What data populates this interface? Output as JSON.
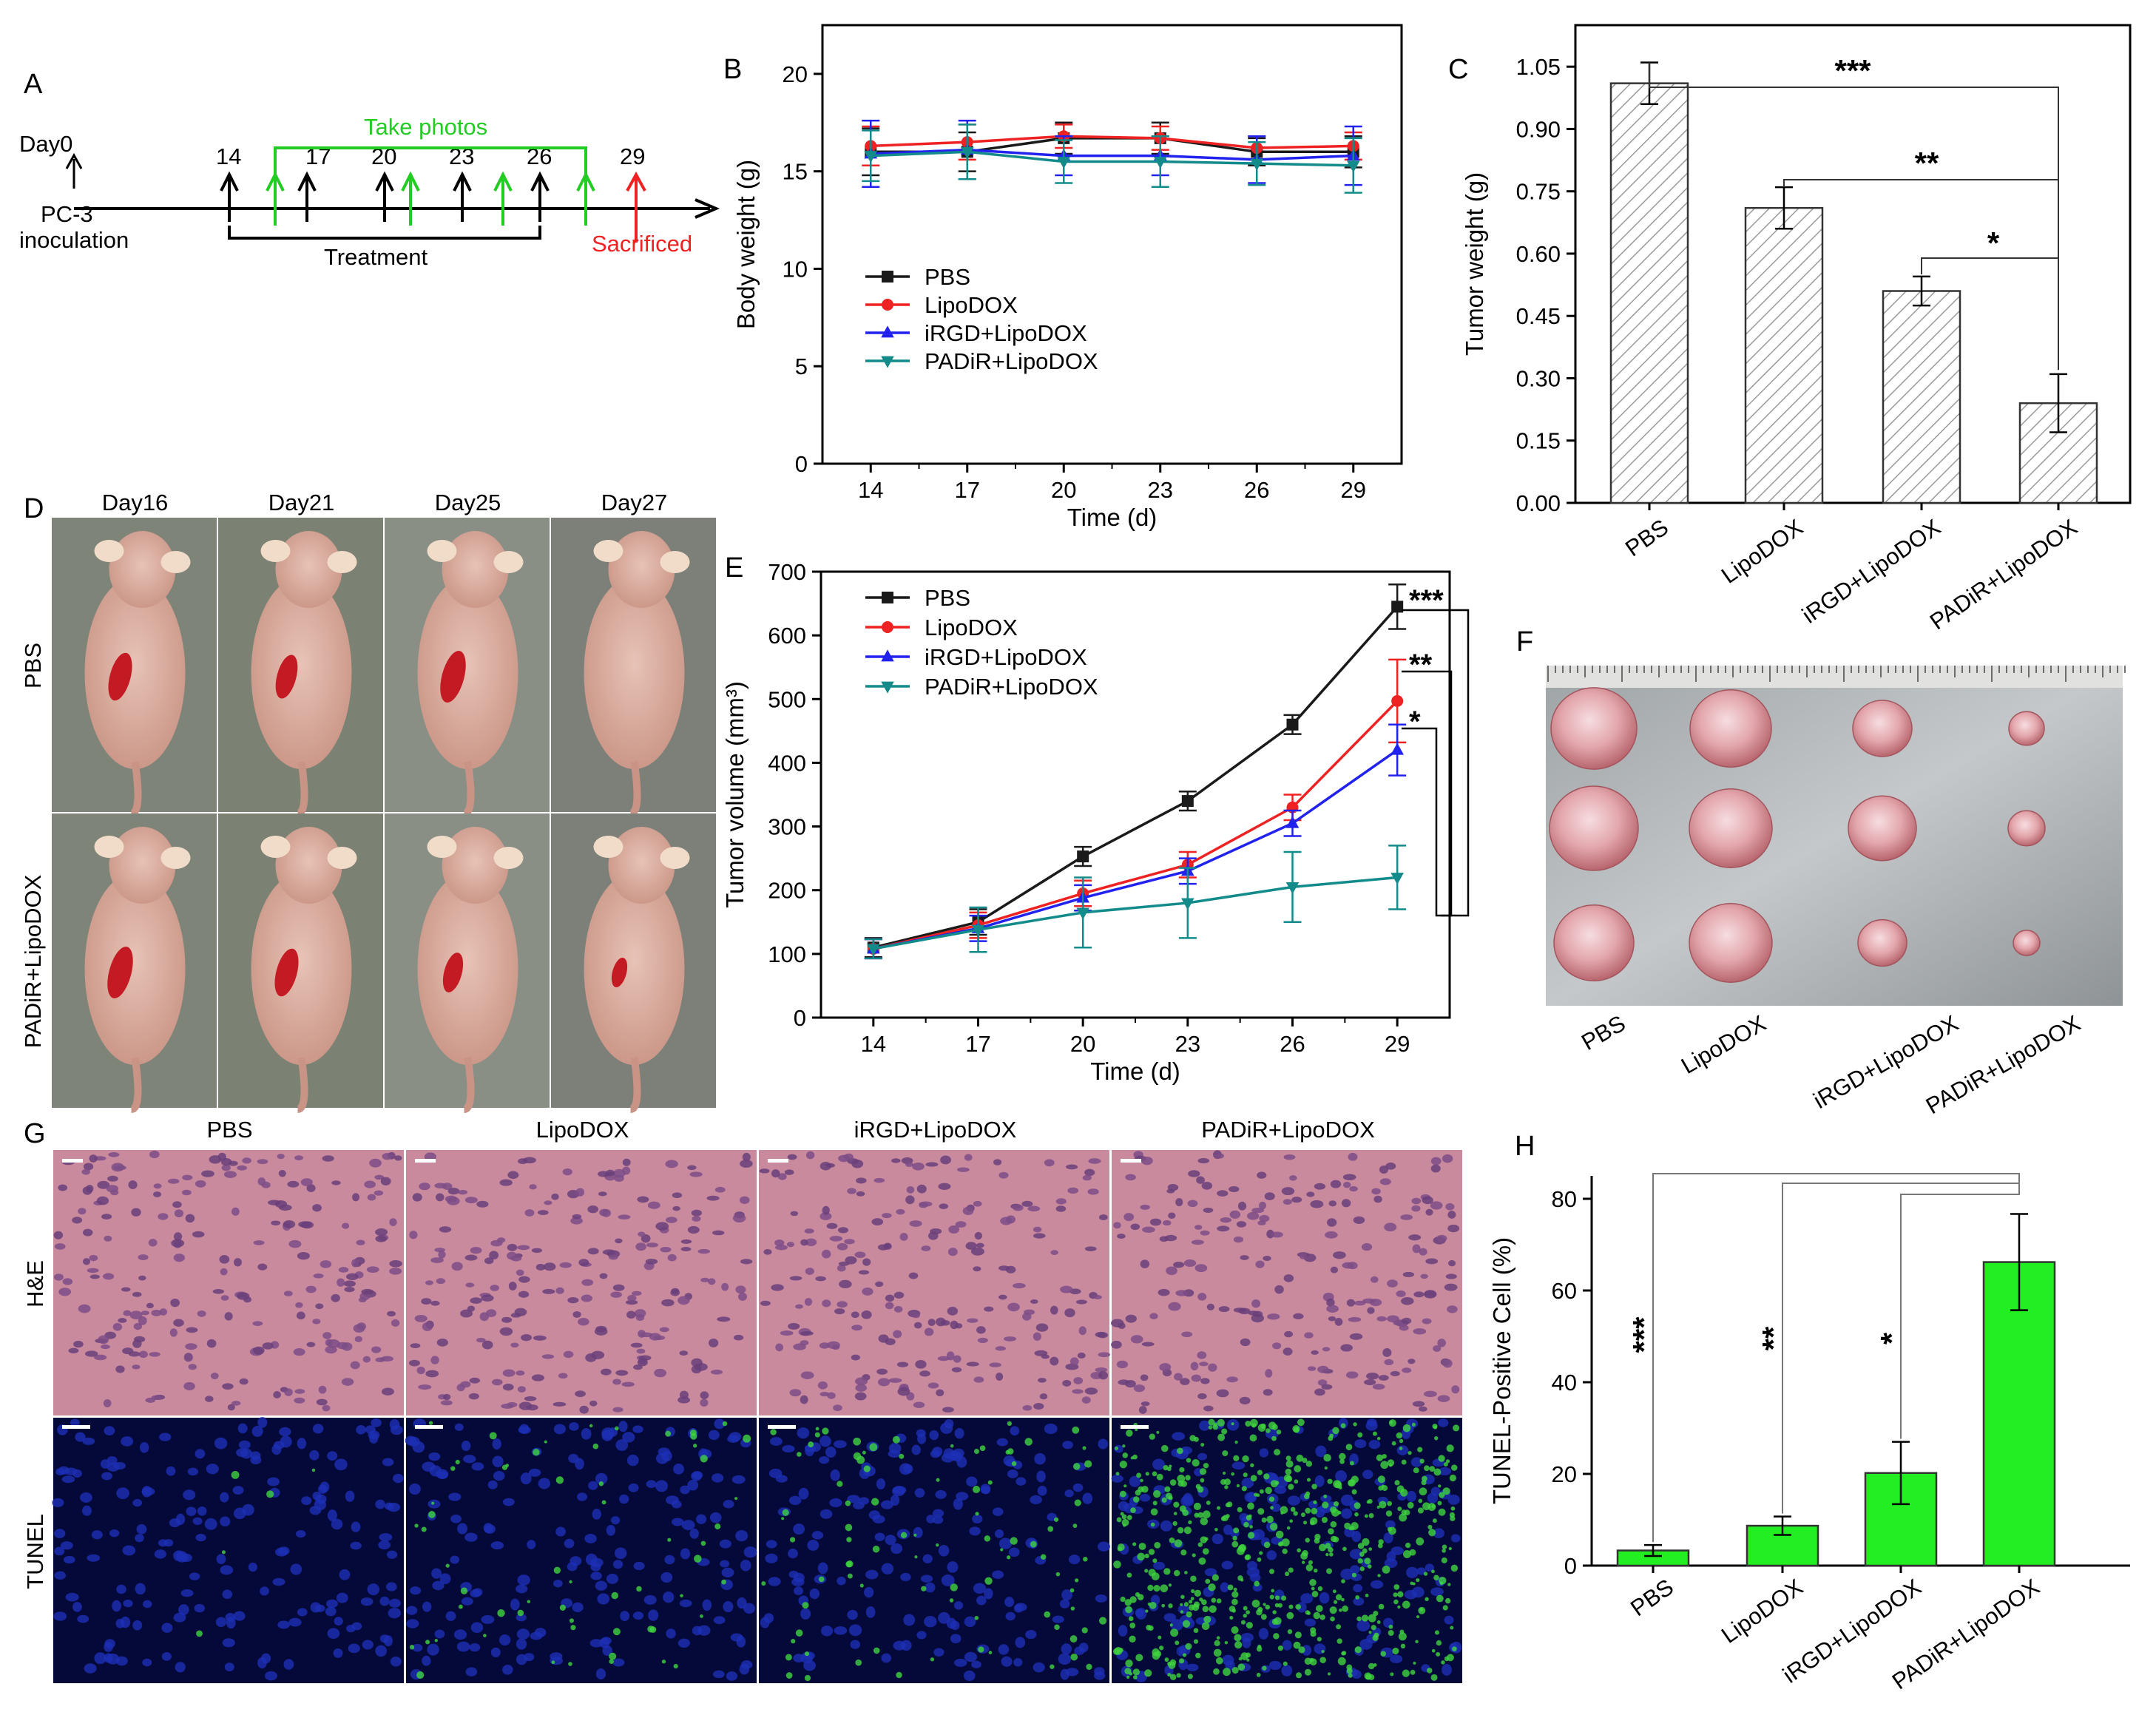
{
  "figure": {
    "panels": [
      "A",
      "B",
      "C",
      "D",
      "E",
      "F",
      "G",
      "H"
    ]
  },
  "timeline": {
    "day0_label": "Day0",
    "inoculation_label": "PC-3\ninoculation",
    "take_photos_label": "Take photos",
    "treatment_label": "Treatment",
    "sacrificed_label": "Sacrificed",
    "treatment_days": [
      "14",
      "17",
      "20",
      "23",
      "26"
    ],
    "end_day": "29",
    "colors": {
      "treatment": "#000000",
      "photo": "#22cc22",
      "sacrifice": "#ee2222"
    }
  },
  "series_styles": [
    {
      "name": "PBS",
      "color": "#1a1a1a",
      "marker": "square"
    },
    {
      "name": "LipoDOX",
      "color": "#ee2222",
      "marker": "circle"
    },
    {
      "name": "iRGD+LipoDOX",
      "color": "#2222ee",
      "marker": "triangle-up"
    },
    {
      "name": "PADiR+LipoDOX",
      "color": "#138b8b",
      "marker": "triangle-down"
    }
  ],
  "chart_data": [
    {
      "panel": "B",
      "type": "line",
      "xlabel": "Time (d)",
      "ylabel": "Body weight (g)",
      "x": [
        14,
        17,
        20,
        23,
        26,
        29
      ],
      "xlim": [
        12.5,
        30.5
      ],
      "ylim": [
        0,
        22.5
      ],
      "yticks": [
        0,
        5,
        10,
        15,
        20
      ],
      "legend_position": "lower-left",
      "series": [
        {
          "name": "PBS",
          "values": [
            16.0,
            16.0,
            16.7,
            16.7,
            16.0,
            16.0
          ],
          "errors": [
            1.2,
            1.0,
            0.8,
            0.8,
            0.7,
            0.8
          ]
        },
        {
          "name": "LipoDOX",
          "values": [
            16.3,
            16.5,
            16.8,
            16.7,
            16.2,
            16.3
          ],
          "errors": [
            1.0,
            0.9,
            0.6,
            0.6,
            0.6,
            0.7
          ]
        },
        {
          "name": "iRGD+LipoDOX",
          "values": [
            15.9,
            16.1,
            15.8,
            15.8,
            15.6,
            15.8
          ],
          "errors": [
            1.7,
            1.5,
            1.0,
            1.0,
            1.2,
            1.5
          ]
        },
        {
          "name": "PADiR+LipoDOX",
          "values": [
            15.8,
            16.0,
            15.5,
            15.5,
            15.4,
            15.3
          ],
          "errors": [
            1.3,
            1.4,
            1.1,
            1.3,
            1.1,
            1.4
          ]
        }
      ]
    },
    {
      "panel": "C",
      "type": "bar",
      "xlabel": "",
      "ylabel": "Tumor weight (g)",
      "categories": [
        "PBS",
        "LipoDOX",
        "iRGD+LipoDOX",
        "PADiR+LipoDOX"
      ],
      "values": [
        1.01,
        0.71,
        0.51,
        0.24
      ],
      "errors": [
        0.05,
        0.05,
        0.035,
        0.07
      ],
      "ylim": [
        0,
        1.15
      ],
      "yticks": [
        "0.00",
        "0.15",
        "0.30",
        "0.45",
        "0.60",
        "0.75",
        "0.90",
        "1.05"
      ],
      "significance": [
        {
          "from": "PBS",
          "to": "PADiR+LipoDOX",
          "label": "***"
        },
        {
          "from": "LipoDOX",
          "to": "PADiR+LipoDOX",
          "label": "**"
        },
        {
          "from": "iRGD+LipoDOX",
          "to": "PADiR+LipoDOX",
          "label": "*"
        }
      ]
    },
    {
      "panel": "E",
      "type": "line",
      "xlabel": "Time (d)",
      "ylabel": "Tumor volume (mm³)",
      "x": [
        14,
        17,
        20,
        23,
        26,
        29
      ],
      "xlim": [
        12.5,
        30.5
      ],
      "ylim": [
        0,
        700
      ],
      "yticks": [
        0,
        100,
        200,
        300,
        400,
        500,
        600,
        700
      ],
      "legend_position": "top-left",
      "series": [
        {
          "name": "PBS",
          "values": [
            110,
            150,
            253,
            340,
            460,
            645
          ],
          "errors": [
            15,
            20,
            15,
            15,
            15,
            35
          ]
        },
        {
          "name": "LipoDOX",
          "values": [
            108,
            145,
            195,
            240,
            330,
            497
          ],
          "errors": [
            15,
            20,
            20,
            20,
            20,
            65
          ]
        },
        {
          "name": "iRGD+LipoDOX",
          "values": [
            108,
            140,
            188,
            230,
            305,
            420
          ],
          "errors": [
            15,
            20,
            20,
            20,
            20,
            40
          ]
        },
        {
          "name": "PADiR+LipoDOX",
          "values": [
            108,
            138,
            165,
            180,
            205,
            220
          ],
          "errors": [
            15,
            35,
            55,
            55,
            55,
            50
          ]
        }
      ],
      "significance": [
        {
          "label": "***"
        },
        {
          "label": "**"
        },
        {
          "label": "*"
        }
      ]
    },
    {
      "panel": "H",
      "type": "bar",
      "xlabel": "",
      "ylabel": "TUNEL-Positive Cell (%)",
      "categories": [
        "PBS",
        "LipoDOX",
        "iRGD+LipoDOX",
        "PADiR+LipoDOX"
      ],
      "values": [
        3.3,
        8.7,
        20.2,
        66.2
      ],
      "errors": [
        1.2,
        2.0,
        6.8,
        10.5
      ],
      "ylim": [
        0,
        85
      ],
      "yticks": [
        0,
        20,
        40,
        60,
        80
      ],
      "significance": [
        {
          "from": "PBS",
          "to": "PADiR+LipoDOX",
          "label": "***"
        },
        {
          "from": "LipoDOX",
          "to": "PADiR+LipoDOX",
          "label": "**"
        },
        {
          "from": "iRGD+LipoDOX",
          "to": "PADiR+LipoDOX",
          "label": "*"
        }
      ]
    }
  ],
  "photos_d": {
    "columns": [
      "Day16",
      "Day21",
      "Day25",
      "Day27"
    ],
    "rows": [
      "PBS",
      "PADiR+LipoDOX"
    ]
  },
  "photos_f": {
    "labels": [
      "PBS",
      "LipoDOX",
      "iRGD+LipoDOX",
      "PADiR+LipoDOX"
    ]
  },
  "histology_g": {
    "columns": [
      "PBS",
      "LipoDOX",
      "iRGD+LipoDOX",
      "PADiR+LipoDOX"
    ],
    "rows": [
      "H&E",
      "TUNEL"
    ]
  }
}
